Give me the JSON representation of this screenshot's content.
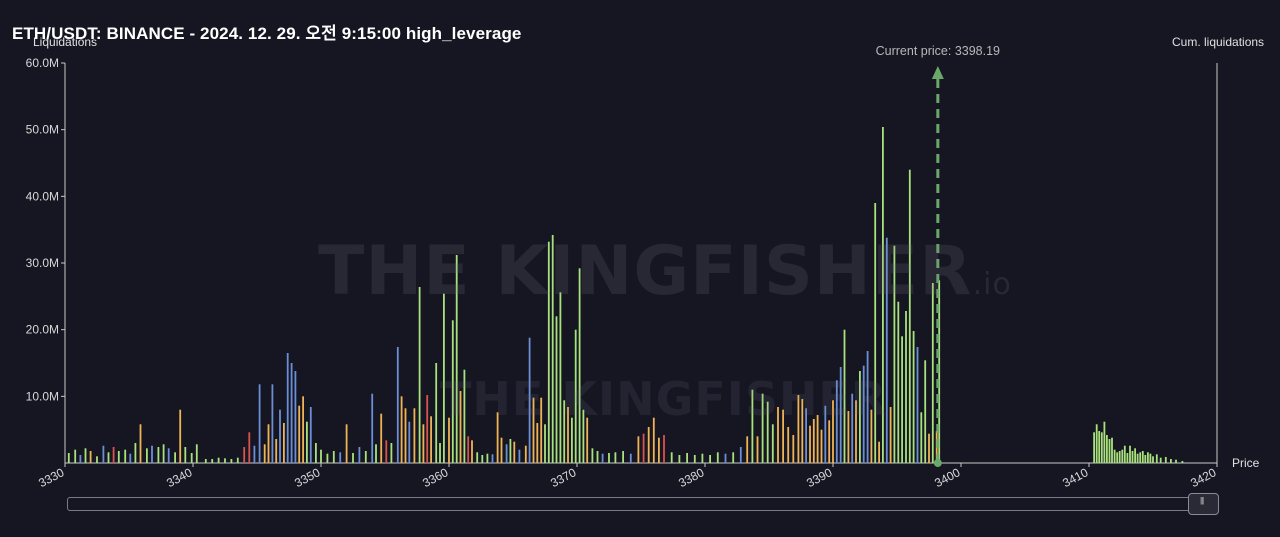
{
  "header": {
    "title": "ETH/USDT: BINANCE - 2024. 12. 29. 오전 9:15:00 high_leverage"
  },
  "watermark": {
    "text": "THE KINGFISHER",
    "suffix": ".io"
  },
  "colors": {
    "background": "#161622",
    "green": "#a8e27c",
    "orange": "#f0b454",
    "blue": "#6a8fd6",
    "red": "#d9534f",
    "price_line": "#6aa86a",
    "axis": "#c8c8c8"
  },
  "chart_data": {
    "type": "bar",
    "title": "ETH/USDT: BINANCE - 2024. 12. 29. 오전 9:15:00 high_leverage",
    "ylabel": "Liquidations",
    "y2label": "Cum. liquidations",
    "xlabel": "Price",
    "xlim": [
      3330,
      3420
    ],
    "ylim": [
      0,
      60
    ],
    "y_unit": "M",
    "x_ticks": [
      3330,
      3340,
      3350,
      3360,
      3370,
      3380,
      3390,
      3400,
      3410,
      3420
    ],
    "y_ticks": [
      "10.0M",
      "20.0M",
      "30.0M",
      "40.0M",
      "50.0M",
      "60.0M"
    ],
    "y_tick_values": [
      10,
      20,
      30,
      40,
      50,
      60
    ],
    "current_price": 3398.19,
    "current_price_label": "Current price: 3398.19",
    "bars": [
      [
        3330.3,
        1.5,
        "g"
      ],
      [
        3330.8,
        2,
        "g"
      ],
      [
        3331.2,
        1.2,
        "b"
      ],
      [
        3331.6,
        2.2,
        "g"
      ],
      [
        3332,
        1.8,
        "o"
      ],
      [
        3332.5,
        1,
        "g"
      ],
      [
        3333,
        2.6,
        "b"
      ],
      [
        3333.4,
        1.6,
        "g"
      ],
      [
        3333.8,
        2.4,
        "r"
      ],
      [
        3334.2,
        1.8,
        "g"
      ],
      [
        3334.7,
        2,
        "g"
      ],
      [
        3335.1,
        1.4,
        "b"
      ],
      [
        3335.5,
        3,
        "g"
      ],
      [
        3335.9,
        5.8,
        "o"
      ],
      [
        3336.4,
        2.2,
        "g"
      ],
      [
        3336.8,
        2.6,
        "b"
      ],
      [
        3337.3,
        2.4,
        "g"
      ],
      [
        3337.7,
        2.8,
        "g"
      ],
      [
        3338.1,
        2.2,
        "b"
      ],
      [
        3338.6,
        1.6,
        "g"
      ],
      [
        3339,
        8,
        "o"
      ],
      [
        3339.4,
        2.4,
        "g"
      ],
      [
        3339.9,
        1.5,
        "g"
      ],
      [
        3340.3,
        2.8,
        "g"
      ],
      [
        3341,
        0.6,
        "g"
      ],
      [
        3341.5,
        0.6,
        "g"
      ],
      [
        3342,
        0.8,
        "g"
      ],
      [
        3342.5,
        0.7,
        "g"
      ],
      [
        3343,
        0.6,
        "g"
      ],
      [
        3343.5,
        0.8,
        "g"
      ],
      [
        3344,
        2.4,
        "r"
      ],
      [
        3344.4,
        4.6,
        "r"
      ],
      [
        3344.8,
        2.6,
        "b"
      ],
      [
        3345.2,
        11.8,
        "b"
      ],
      [
        3345.6,
        2.8,
        "o"
      ],
      [
        3345.9,
        5.8,
        "o"
      ],
      [
        3346.2,
        11.8,
        "b"
      ],
      [
        3346.5,
        3.6,
        "o"
      ],
      [
        3346.8,
        8,
        "b"
      ],
      [
        3347.1,
        6,
        "o"
      ],
      [
        3347.4,
        16.5,
        "b"
      ],
      [
        3347.7,
        15,
        "b"
      ],
      [
        3348,
        13.8,
        "b"
      ],
      [
        3348.3,
        8.6,
        "o"
      ],
      [
        3348.6,
        10,
        "o"
      ],
      [
        3348.9,
        6.2,
        "g"
      ],
      [
        3349.2,
        8.4,
        "b"
      ],
      [
        3349.6,
        3,
        "g"
      ],
      [
        3350,
        2,
        "g"
      ],
      [
        3350.5,
        1.4,
        "g"
      ],
      [
        3351,
        1.8,
        "g"
      ],
      [
        3351.5,
        1.6,
        "b"
      ],
      [
        3352,
        5.8,
        "o"
      ],
      [
        3352.5,
        1.5,
        "g"
      ],
      [
        3353,
        2.4,
        "b"
      ],
      [
        3353.5,
        1.8,
        "g"
      ],
      [
        3354,
        10.4,
        "b"
      ],
      [
        3354.3,
        2.8,
        "g"
      ],
      [
        3354.7,
        7.4,
        "o"
      ],
      [
        3355.1,
        3.4,
        "r"
      ],
      [
        3355.5,
        3,
        "g"
      ],
      [
        3356,
        17.4,
        "b"
      ],
      [
        3356.3,
        10,
        "o"
      ],
      [
        3356.6,
        8.2,
        "o"
      ],
      [
        3356.9,
        6.2,
        "b"
      ],
      [
        3357.3,
        8.2,
        "o"
      ],
      [
        3357.7,
        26.4,
        "g"
      ],
      [
        3358,
        5.8,
        "o"
      ],
      [
        3358.3,
        10.2,
        "r"
      ],
      [
        3358.6,
        7,
        "o"
      ],
      [
        3359,
        15,
        "g"
      ],
      [
        3359.3,
        3,
        "g"
      ],
      [
        3359.6,
        25.4,
        "g"
      ],
      [
        3360,
        6.8,
        "o"
      ],
      [
        3360.3,
        21.4,
        "g"
      ],
      [
        3360.6,
        31.2,
        "g"
      ],
      [
        3360.9,
        10.8,
        "o"
      ],
      [
        3361.2,
        14,
        "g"
      ],
      [
        3361.5,
        4,
        "r"
      ],
      [
        3361.8,
        3.4,
        "o"
      ],
      [
        3362.2,
        1.6,
        "g"
      ],
      [
        3362.6,
        1.2,
        "g"
      ],
      [
        3363,
        1.4,
        "g"
      ],
      [
        3363.4,
        1.3,
        "b"
      ],
      [
        3363.8,
        7.6,
        "o"
      ],
      [
        3364.1,
        3.8,
        "o"
      ],
      [
        3364.5,
        2.8,
        "b"
      ],
      [
        3364.8,
        3.6,
        "g"
      ],
      [
        3365.1,
        3.2,
        "o"
      ],
      [
        3365.5,
        2,
        "b"
      ],
      [
        3366,
        2.6,
        "o"
      ],
      [
        3366.3,
        18.8,
        "b"
      ],
      [
        3366.6,
        9.8,
        "o"
      ],
      [
        3366.9,
        6,
        "o"
      ],
      [
        3367.2,
        9.8,
        "o"
      ],
      [
        3367.5,
        5.8,
        "g"
      ],
      [
        3367.8,
        33.2,
        "g"
      ],
      [
        3368.1,
        34.2,
        "g"
      ],
      [
        3368.4,
        22,
        "g"
      ],
      [
        3368.7,
        25.6,
        "g"
      ],
      [
        3369,
        9.4,
        "g"
      ],
      [
        3369.3,
        8.4,
        "o"
      ],
      [
        3369.6,
        6.8,
        "g"
      ],
      [
        3369.9,
        20,
        "g"
      ],
      [
        3370.2,
        29.2,
        "g"
      ],
      [
        3370.5,
        8,
        "g"
      ],
      [
        3370.8,
        6.8,
        "o"
      ],
      [
        3371.2,
        2.2,
        "g"
      ],
      [
        3371.6,
        1.8,
        "g"
      ],
      [
        3372,
        1.4,
        "b"
      ],
      [
        3372.5,
        1.5,
        "g"
      ],
      [
        3373,
        1.6,
        "g"
      ],
      [
        3373.6,
        1.8,
        "g"
      ],
      [
        3374.2,
        1.4,
        "b"
      ],
      [
        3374.8,
        4,
        "o"
      ],
      [
        3375.2,
        4.4,
        "r"
      ],
      [
        3375.6,
        5.4,
        "o"
      ],
      [
        3376,
        6.8,
        "o"
      ],
      [
        3376.4,
        3.8,
        "o"
      ],
      [
        3376.8,
        4.2,
        "r"
      ],
      [
        3377.4,
        1.6,
        "g"
      ],
      [
        3378,
        1.2,
        "g"
      ],
      [
        3378.6,
        1.5,
        "g"
      ],
      [
        3379.2,
        1.2,
        "g"
      ],
      [
        3379.8,
        1.4,
        "g"
      ],
      [
        3380.4,
        1.2,
        "g"
      ],
      [
        3381,
        1.6,
        "g"
      ],
      [
        3381.6,
        1.4,
        "b"
      ],
      [
        3382.2,
        1.6,
        "g"
      ],
      [
        3382.8,
        2.4,
        "b"
      ],
      [
        3383.3,
        4,
        "o"
      ],
      [
        3383.7,
        11,
        "g"
      ],
      [
        3384.1,
        4,
        "o"
      ],
      [
        3384.5,
        10.4,
        "g"
      ],
      [
        3384.9,
        9.2,
        "g"
      ],
      [
        3385.3,
        5.8,
        "g"
      ],
      [
        3385.7,
        8.4,
        "o"
      ],
      [
        3386.1,
        8,
        "o"
      ],
      [
        3386.5,
        5.4,
        "o"
      ],
      [
        3386.9,
        4.2,
        "o"
      ],
      [
        3387.3,
        10.2,
        "o"
      ],
      [
        3387.6,
        9.6,
        "o"
      ],
      [
        3387.9,
        8.2,
        "b"
      ],
      [
        3388.2,
        5.6,
        "o"
      ],
      [
        3388.5,
        6.6,
        "o"
      ],
      [
        3388.8,
        7.2,
        "o"
      ],
      [
        3389.1,
        5,
        "o"
      ],
      [
        3389.4,
        8.6,
        "b"
      ],
      [
        3389.7,
        6.4,
        "o"
      ],
      [
        3390,
        9.4,
        "o"
      ],
      [
        3390.3,
        12.4,
        "b"
      ],
      [
        3390.6,
        14.4,
        "b"
      ],
      [
        3390.9,
        20,
        "g"
      ],
      [
        3391.2,
        7.8,
        "o"
      ],
      [
        3391.5,
        10.4,
        "b"
      ],
      [
        3391.8,
        9.4,
        "o"
      ],
      [
        3392.1,
        13.8,
        "g"
      ],
      [
        3392.4,
        14.6,
        "b"
      ],
      [
        3392.7,
        16.8,
        "b"
      ],
      [
        3393,
        8,
        "o"
      ],
      [
        3393.3,
        39,
        "g"
      ],
      [
        3393.6,
        3.2,
        "o"
      ],
      [
        3393.9,
        50.4,
        "g"
      ],
      [
        3394.2,
        33.8,
        "b"
      ],
      [
        3394.5,
        8.4,
        "o"
      ],
      [
        3394.8,
        32.6,
        "g"
      ],
      [
        3395.1,
        24.2,
        "g"
      ],
      [
        3395.4,
        19,
        "g"
      ],
      [
        3395.7,
        22.8,
        "g"
      ],
      [
        3396,
        44,
        "g"
      ],
      [
        3396.3,
        19.8,
        "g"
      ],
      [
        3396.6,
        17.4,
        "b"
      ],
      [
        3396.9,
        7.6,
        "g"
      ],
      [
        3397.2,
        15.4,
        "g"
      ],
      [
        3397.5,
        4.4,
        "o"
      ],
      [
        3397.8,
        27,
        "g"
      ],
      [
        3398.1,
        4.8,
        "o"
      ],
      [
        3398.3,
        27.4,
        "g"
      ],
      [
        3410.4,
        4.6,
        "g"
      ],
      [
        3410.6,
        5.8,
        "g"
      ],
      [
        3410.8,
        4.8,
        "g"
      ],
      [
        3411,
        4.6,
        "g"
      ],
      [
        3411.2,
        6.2,
        "g"
      ],
      [
        3411.4,
        4.2,
        "g"
      ],
      [
        3411.6,
        3.6,
        "g"
      ],
      [
        3411.8,
        3.8,
        "g"
      ],
      [
        3412,
        2,
        "g"
      ],
      [
        3412.2,
        1.6,
        "g"
      ],
      [
        3412.4,
        1.8,
        "g"
      ],
      [
        3412.6,
        2,
        "g"
      ],
      [
        3412.8,
        2.6,
        "g"
      ],
      [
        3413,
        1.5,
        "g"
      ],
      [
        3413.2,
        2.6,
        "g"
      ],
      [
        3413.4,
        1.8,
        "g"
      ],
      [
        3413.6,
        2.2,
        "g"
      ],
      [
        3413.8,
        1.4,
        "g"
      ],
      [
        3414,
        1.6,
        "g"
      ],
      [
        3414.2,
        1.8,
        "g"
      ],
      [
        3414.4,
        1.2,
        "g"
      ],
      [
        3414.6,
        1.6,
        "g"
      ],
      [
        3414.8,
        1.4,
        "g"
      ],
      [
        3415,
        1,
        "g"
      ],
      [
        3415.3,
        1.3,
        "g"
      ],
      [
        3415.6,
        0.8,
        "g"
      ],
      [
        3416,
        0.9,
        "g"
      ],
      [
        3416.4,
        0.6,
        "g"
      ],
      [
        3416.8,
        0.5,
        "g"
      ],
      [
        3417.3,
        0.3,
        "g"
      ]
    ]
  }
}
